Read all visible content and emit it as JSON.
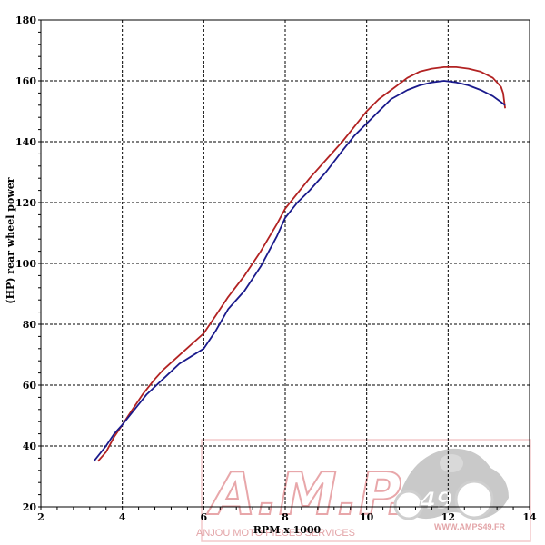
{
  "chart_data": {
    "type": "line",
    "title": "",
    "xlabel": "RPM x 1000",
    "ylabel": "(HP) rear wheel power",
    "xlim": [
      2,
      14
    ],
    "ylim": [
      20,
      180
    ],
    "x_ticks": [
      "2",
      "4",
      "6",
      "8",
      "10",
      "12",
      "14"
    ],
    "y_ticks": [
      "20",
      "40",
      "60",
      "80",
      "100",
      "120",
      "140",
      "160",
      "180"
    ],
    "grid": true,
    "legend": "none",
    "series": [
      {
        "color": "#b22222",
        "x": [
          3.4,
          3.6,
          3.8,
          4.0,
          4.2,
          4.5,
          4.8,
          5.0,
          5.5,
          6.0,
          6.3,
          6.6,
          7.0,
          7.4,
          7.8,
          8.0,
          8.3,
          8.6,
          9.0,
          9.4,
          9.7,
          10.0,
          10.3,
          10.6,
          11.0,
          11.3,
          11.6,
          11.9,
          12.2,
          12.5,
          12.8,
          13.1,
          13.3,
          13.35,
          13.4
        ],
        "y": [
          35,
          38,
          43,
          47,
          51,
          57,
          62,
          65,
          71,
          77,
          83,
          89,
          96,
          104,
          113,
          118,
          123,
          128,
          134,
          140,
          145,
          150,
          154,
          157,
          161,
          163,
          164,
          164.5,
          164.5,
          164,
          163,
          161,
          158,
          156,
          151
        ]
      },
      {
        "color": "#1a1a8c",
        "x": [
          3.3,
          3.6,
          3.8,
          4.0,
          4.3,
          4.6,
          5.0,
          5.4,
          6.0,
          6.3,
          6.6,
          7.0,
          7.4,
          7.8,
          8.0,
          8.3,
          8.6,
          9.0,
          9.4,
          9.7,
          10.0,
          10.3,
          10.6,
          11.0,
          11.3,
          11.6,
          11.9,
          12.2,
          12.5,
          12.8,
          13.1,
          13.3,
          13.4
        ],
        "y": [
          35,
          40,
          44,
          47,
          52,
          57,
          62,
          67,
          72,
          78,
          85,
          91,
          99,
          109,
          115,
          120,
          124,
          130,
          137,
          142,
          146,
          150,
          154,
          157,
          158.5,
          159.5,
          160,
          159.5,
          158.5,
          157,
          155,
          153,
          152
        ]
      }
    ]
  },
  "watermark": {
    "logo_text": "A.M.P.S",
    "badge_number": "49",
    "company": "ANJOU MOTO PIECES SERVICES",
    "website": "WWW.AMPS49.FR"
  },
  "colors": {
    "red_curve": "#b22222",
    "blue_curve": "#1a1a8c",
    "watermark": "#e8a7aa"
  }
}
